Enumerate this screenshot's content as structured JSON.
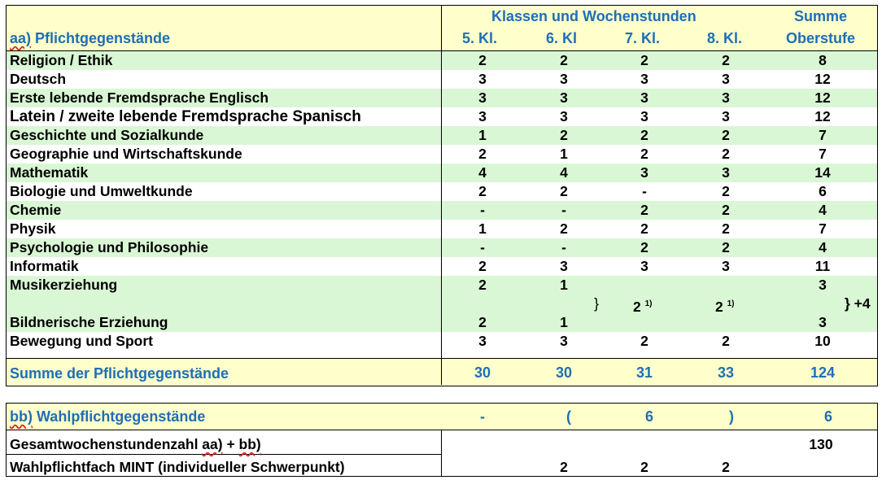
{
  "header": {
    "section_prefix": "aa)",
    "section_rest": " Pflichtgegenstände",
    "group_title": "Klassen und Wochenstunden",
    "sum_title_line1": "Summe",
    "sum_title_line2": "Oberstufe",
    "columns": [
      "5. Kl.",
      "6. Kl",
      "7. Kl.",
      "8. Kl."
    ]
  },
  "rows": [
    {
      "subject": "Religion / Ethik",
      "values": [
        "2",
        "2",
        "2",
        "2"
      ],
      "sum": "8",
      "green": true
    },
    {
      "subject": "Deutsch",
      "values": [
        "3",
        "3",
        "3",
        "3"
      ],
      "sum": "12",
      "green": false
    },
    {
      "subject": "Erste lebende Fremdsprache Englisch",
      "values": [
        "3",
        "3",
        "3",
        "3"
      ],
      "sum": "12",
      "green": true
    },
    {
      "subject": "Latein / zweite lebende Fremdsprache Spanisch",
      "values": [
        "3",
        "3",
        "3",
        "3"
      ],
      "sum": "12",
      "green": false
    },
    {
      "subject": "Geschichte und Sozialkunde",
      "values": [
        "1",
        "2",
        "2",
        "2"
      ],
      "sum": "7",
      "green": true
    },
    {
      "subject": "Geographie und Wirtschaftskunde",
      "values": [
        "2",
        "1",
        "2",
        "2"
      ],
      "sum": "7",
      "green": false
    },
    {
      "subject": "Mathematik",
      "values": [
        "4",
        "4",
        "3",
        "3"
      ],
      "sum": "14",
      "green": true
    },
    {
      "subject": "Biologie und Umweltkunde",
      "values": [
        "2",
        "2",
        "-",
        "2"
      ],
      "sum": "6",
      "green": false
    },
    {
      "subject": "Chemie",
      "values": [
        "-",
        "-",
        "2",
        "2"
      ],
      "sum": "4",
      "green": true
    },
    {
      "subject": "Physik",
      "values": [
        "1",
        "2",
        "2",
        "2"
      ],
      "sum": "7",
      "green": false
    },
    {
      "subject": "Psychologie und Philosophie",
      "values": [
        "-",
        "-",
        "2",
        "2"
      ],
      "sum": "4",
      "green": true
    },
    {
      "subject": "Informatik",
      "values": [
        "2",
        "3",
        "3",
        "3"
      ],
      "sum": "11",
      "green": false
    }
  ],
  "music_block": {
    "music": {
      "subject": "Musikerziehung",
      "k5": "2",
      "k6": "1",
      "sum": "3"
    },
    "brace": "}",
    "k7": "2",
    "k8": "2",
    "footnote": "1)",
    "sum_extra": "} +4",
    "art": {
      "subject": "Bildnerische Erziehung",
      "k5": "2",
      "k6": "1",
      "sum": "3"
    }
  },
  "sport": {
    "subject": "Bewegung und Sport",
    "values": [
      "3",
      "3",
      "2",
      "2"
    ],
    "sum": "10"
  },
  "total": {
    "label": "Summe der Pflichtgegenstände",
    "values": [
      "30",
      "30",
      "31",
      "33"
    ],
    "sum": "124"
  },
  "elective": {
    "label_prefix": "bb)",
    "label_rest": " Wahlpflichtgegenstände",
    "values": [
      "-",
      "(",
      "6",
      ")"
    ],
    "sum": "6"
  },
  "grand_total": {
    "label_a": "Gesamtwochenstundenzahl ",
    "label_aa": "aa)",
    "label_mid": " + ",
    "label_bb": "bb)",
    "sum": "130"
  },
  "mint": {
    "label": "Wahlpflichtfach MINT (individueller Schwerpunkt)",
    "values": [
      "2",
      "2",
      "2"
    ]
  }
}
